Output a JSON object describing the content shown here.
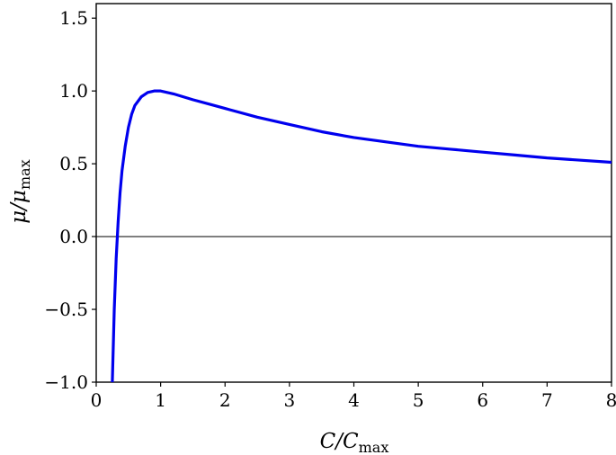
{
  "chart_data": {
    "type": "line",
    "title": "",
    "xlabel": "C/C_max",
    "ylabel": "μ/μ_max",
    "xlabel_parts": {
      "main": "C/C",
      "sub": "max"
    },
    "ylabel_parts": {
      "main": "μ/μ",
      "sub": "max"
    },
    "xlim": [
      0,
      8
    ],
    "ylim": [
      -1.0,
      1.6
    ],
    "xticks": [
      0,
      1,
      2,
      3,
      4,
      5,
      6,
      7,
      8
    ],
    "xtick_labels": [
      "0",
      "1",
      "2",
      "3",
      "4",
      "5",
      "6",
      "7",
      "8"
    ],
    "yticks": [
      -1.0,
      -0.5,
      0.0,
      0.5,
      1.0,
      1.5
    ],
    "ytick_labels": [
      "−1.0",
      "−0.5",
      "0.0",
      "0.5",
      "1.0",
      "1.5"
    ],
    "grid": false,
    "legend": "none",
    "reference_lines": [
      {
        "axis": "y",
        "value": 0.0,
        "color": "#000000"
      }
    ],
    "series": [
      {
        "color": "#0000ee",
        "x": [
          0.25,
          0.28,
          0.31,
          0.34,
          0.37,
          0.4,
          0.45,
          0.5,
          0.55,
          0.6,
          0.7,
          0.8,
          0.9,
          1.0,
          1.1,
          1.2,
          1.35,
          1.5,
          1.75,
          2.0,
          2.5,
          3.0,
          3.5,
          4.0,
          4.5,
          5.0,
          5.5,
          6.0,
          6.5,
          7.0,
          7.5,
          8.0
        ],
        "y": [
          -1.0,
          -0.5,
          -0.15,
          0.1,
          0.3,
          0.45,
          0.62,
          0.75,
          0.84,
          0.9,
          0.96,
          0.99,
          1.0,
          1.0,
          0.99,
          0.98,
          0.96,
          0.94,
          0.91,
          0.88,
          0.82,
          0.77,
          0.72,
          0.68,
          0.65,
          0.62,
          0.6,
          0.58,
          0.56,
          0.54,
          0.525,
          0.51
        ]
      }
    ]
  }
}
